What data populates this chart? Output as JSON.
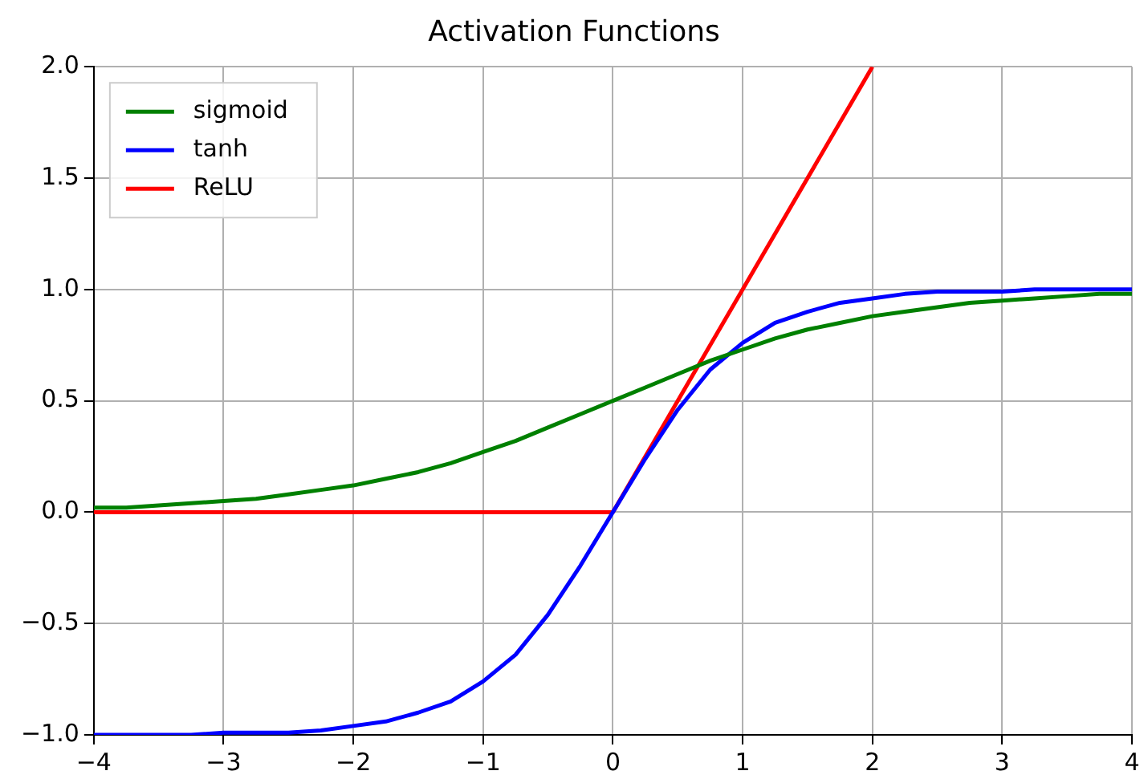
{
  "chart_data": {
    "type": "line",
    "title": "Activation Functions",
    "x": [
      -4,
      -3.75,
      -3.5,
      -3.25,
      -3,
      -2.75,
      -2.5,
      -2.25,
      -2,
      -1.75,
      -1.5,
      -1.25,
      -1,
      -0.75,
      -0.5,
      -0.25,
      0,
      0.25,
      0.5,
      0.75,
      1,
      1.25,
      1.5,
      1.75,
      2,
      2.25,
      2.5,
      2.75,
      3,
      3.25,
      3.5,
      3.75,
      4
    ],
    "series": [
      {
        "name": "sigmoid",
        "color": "#008000",
        "values": [
          0.02,
          0.02,
          0.03,
          0.04,
          0.05,
          0.06,
          0.08,
          0.1,
          0.12,
          0.15,
          0.18,
          0.22,
          0.27,
          0.32,
          0.38,
          0.44,
          0.5,
          0.56,
          0.62,
          0.68,
          0.73,
          0.78,
          0.82,
          0.85,
          0.88,
          0.9,
          0.92,
          0.94,
          0.95,
          0.96,
          0.97,
          0.98,
          0.98
        ]
      },
      {
        "name": "tanh",
        "color": "#0000ff",
        "values": [
          -1,
          -1,
          -1,
          -1,
          -0.99,
          -0.99,
          -0.99,
          -0.98,
          -0.96,
          -0.94,
          -0.9,
          -0.85,
          -0.76,
          -0.64,
          -0.46,
          -0.24,
          0,
          0.24,
          0.46,
          0.64,
          0.76,
          0.85,
          0.9,
          0.94,
          0.96,
          0.98,
          0.99,
          0.99,
          0.99,
          1,
          1,
          1,
          1
        ]
      },
      {
        "name": "ReLU",
        "color": "#ff0000",
        "x": [
          -4,
          0,
          2
        ],
        "values": [
          0,
          0,
          2
        ]
      }
    ],
    "xlim": [
      -4,
      4
    ],
    "xticks": [
      {
        "value": -4,
        "label": "−4"
      },
      {
        "value": -3,
        "label": "−3"
      },
      {
        "value": -2,
        "label": "−2"
      },
      {
        "value": -1,
        "label": "−1"
      },
      0,
      1,
      2,
      3,
      4
    ],
    "ylim": [
      -1,
      2
    ],
    "yticks": [
      {
        "value": -1,
        "label": "−1.0"
      },
      {
        "value": -0.5,
        "label": "−0.5"
      },
      {
        "value": 0,
        "label": "0.0"
      },
      {
        "value": 0.5,
        "label": "0.5"
      },
      {
        "value": 1,
        "label": "1.0"
      },
      {
        "value": 1.5,
        "label": "1.5"
      },
      {
        "value": 2,
        "label": "2.0"
      }
    ],
    "grid": true,
    "legend": "top left"
  }
}
